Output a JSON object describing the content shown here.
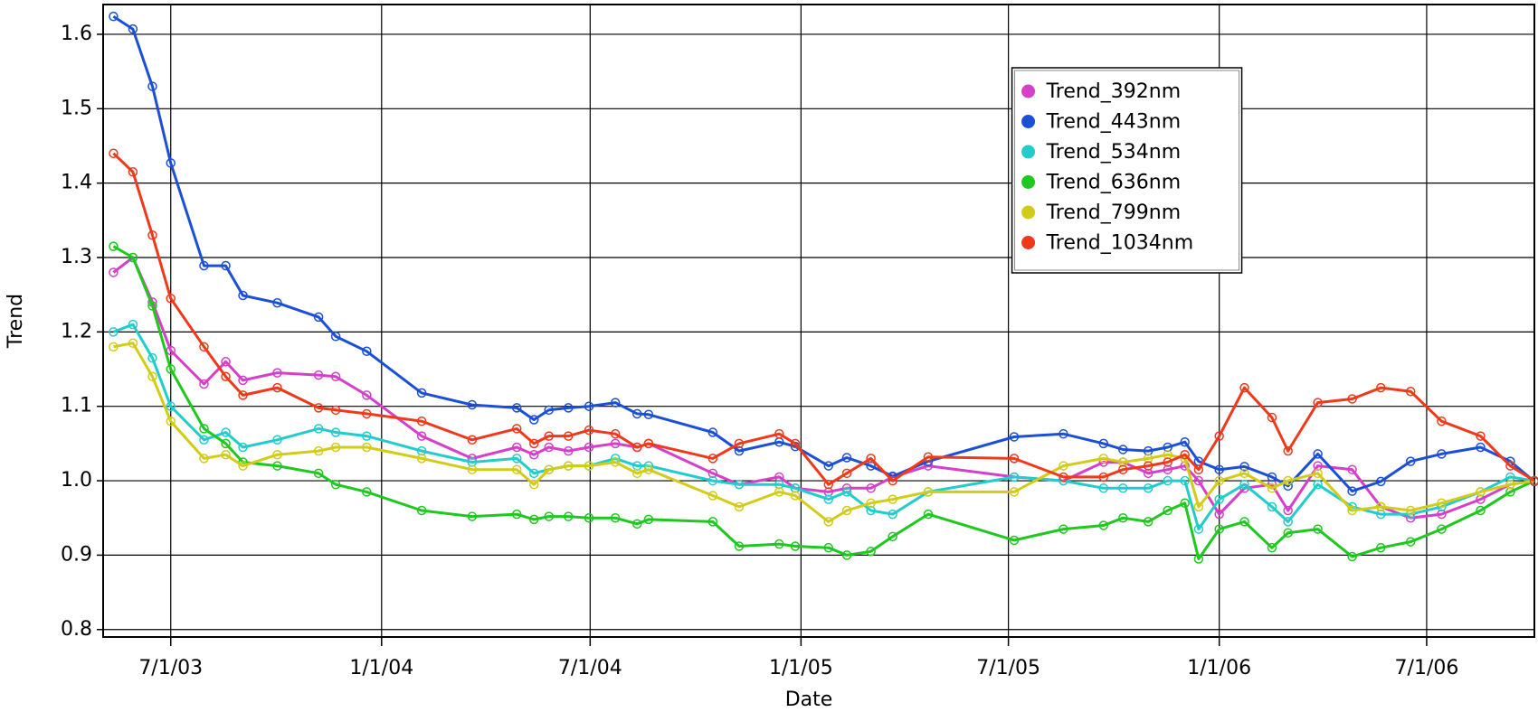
{
  "chart_data": {
    "type": "line",
    "x_label": "Date",
    "y_label": "Trend",
    "x": [
      "2003-05-12",
      "2003-05-29",
      "2003-06-15",
      "2003-07-01",
      "2003-07-30",
      "2003-08-18",
      "2003-09-02",
      "2003-10-02",
      "2003-11-07",
      "2003-11-22",
      "2003-12-19",
      "2004-02-05",
      "2004-03-20",
      "2004-04-28",
      "2004-05-13",
      "2004-05-26",
      "2004-06-12",
      "2004-06-30",
      "2004-07-23",
      "2004-08-11",
      "2004-08-21",
      "2004-10-16",
      "2004-11-08",
      "2004-12-13",
      "2004-12-27",
      "2005-01-25",
      "2005-02-10",
      "2005-03-03",
      "2005-03-22",
      "2005-04-22",
      "2005-07-06",
      "2005-08-18",
      "2005-09-22",
      "2005-10-09",
      "2005-10-31",
      "2005-11-17",
      "2005-12-02",
      "2005-12-14",
      "2006-01-01",
      "2006-01-23",
      "2006-02-16",
      "2006-03-02",
      "2006-03-28",
      "2006-04-27",
      "2006-05-22",
      "2006-06-17",
      "2006-07-14",
      "2006-08-17",
      "2006-09-12",
      "2006-10-03"
    ],
    "series": [
      {
        "name": "Trend_392nm",
        "color": "#d63fc8",
        "values": [
          1.28,
          1.3,
          1.24,
          1.175,
          1.13,
          1.16,
          1.135,
          1.145,
          1.142,
          1.14,
          1.115,
          1.06,
          1.03,
          1.045,
          1.035,
          1.045,
          1.04,
          1.045,
          1.05,
          1.045,
          1.05,
          1.01,
          0.995,
          1.005,
          0.99,
          0.985,
          0.99,
          0.99,
          1.005,
          1.02,
          1.005,
          1.0,
          1.025,
          1.025,
          1.01,
          1.015,
          1.02,
          1.0,
          0.955,
          0.99,
          0.995,
          0.96,
          1.02,
          1.015,
          0.965,
          0.95,
          0.955,
          0.975,
          0.995,
          1.0
        ]
      },
      {
        "name": "Trend_443nm",
        "color": "#1a4fd6",
        "values": [
          1.624,
          1.607,
          1.53,
          1.427,
          1.289,
          1.289,
          1.249,
          1.239,
          1.22,
          1.194,
          1.174,
          1.118,
          1.102,
          1.098,
          1.082,
          1.095,
          1.098,
          1.1,
          1.105,
          1.09,
          1.089,
          1.065,
          1.04,
          1.052,
          1.046,
          1.02,
          1.031,
          1.02,
          1.006,
          1.026,
          1.059,
          1.063,
          1.05,
          1.042,
          1.04,
          1.045,
          1.052,
          1.026,
          1.015,
          1.019,
          1.005,
          0.993,
          1.036,
          0.986,
          0.999,
          1.026,
          1.036,
          1.045,
          1.026,
          0.999
        ]
      },
      {
        "name": "Trend_534nm",
        "color": "#22cccc",
        "values": [
          1.2,
          1.21,
          1.165,
          1.1,
          1.055,
          1.065,
          1.045,
          1.055,
          1.07,
          1.065,
          1.06,
          1.04,
          1.025,
          1.03,
          1.01,
          1.015,
          1.02,
          1.02,
          1.03,
          1.02,
          1.02,
          1.0,
          0.995,
          0.995,
          0.99,
          0.975,
          0.985,
          0.96,
          0.955,
          0.985,
          1.005,
          1.0,
          0.99,
          0.99,
          0.99,
          1.0,
          1.0,
          0.935,
          0.975,
          0.995,
          0.965,
          0.945,
          0.995,
          0.965,
          0.955,
          0.955,
          0.965,
          0.985,
          1.005,
          1.0
        ]
      },
      {
        "name": "Trend_636nm",
        "color": "#1ec81e",
        "values": [
          1.315,
          1.3,
          1.235,
          1.15,
          1.07,
          1.05,
          1.025,
          1.02,
          1.01,
          0.995,
          0.985,
          0.96,
          0.952,
          0.955,
          0.948,
          0.952,
          0.952,
          0.95,
          0.95,
          0.942,
          0.948,
          0.945,
          0.912,
          0.915,
          0.912,
          0.91,
          0.9,
          0.905,
          0.925,
          0.955,
          0.92,
          0.935,
          0.94,
          0.95,
          0.945,
          0.96,
          0.97,
          0.895,
          0.935,
          0.945,
          0.91,
          0.93,
          0.935,
          0.898,
          0.91,
          0.918,
          0.935,
          0.96,
          0.985,
          1.0
        ]
      },
      {
        "name": "Trend_799nm",
        "color": "#d2cc18",
        "values": [
          1.18,
          1.185,
          1.14,
          1.08,
          1.03,
          1.035,
          1.02,
          1.035,
          1.04,
          1.045,
          1.045,
          1.03,
          1.015,
          1.015,
          0.995,
          1.015,
          1.02,
          1.02,
          1.025,
          1.01,
          1.015,
          0.98,
          0.965,
          0.985,
          0.98,
          0.945,
          0.96,
          0.97,
          0.975,
          0.985,
          0.985,
          1.02,
          1.03,
          1.025,
          1.03,
          1.035,
          1.03,
          0.965,
          1.0,
          1.01,
          0.99,
          1.0,
          1.01,
          0.96,
          0.965,
          0.96,
          0.97,
          0.985,
          0.995,
          1.0
        ]
      },
      {
        "name": "Trend_1034nm",
        "color": "#f0381a",
        "values": [
          1.44,
          1.415,
          1.33,
          1.245,
          1.18,
          1.14,
          1.115,
          1.125,
          1.098,
          1.095,
          1.09,
          1.08,
          1.055,
          1.07,
          1.05,
          1.06,
          1.06,
          1.068,
          1.063,
          1.045,
          1.05,
          1.03,
          1.05,
          1.063,
          1.05,
          0.995,
          1.01,
          1.03,
          1.0,
          1.032,
          1.03,
          1.005,
          1.005,
          1.015,
          1.02,
          1.025,
          1.035,
          1.015,
          1.06,
          1.125,
          1.085,
          1.04,
          1.105,
          1.11,
          1.125,
          1.12,
          1.08,
          1.06,
          1.02,
          1.0
        ]
      }
    ],
    "xlim": [
      "2003-05-03",
      "2006-10-03"
    ],
    "xticks": [
      {
        "value": "2003-07-01",
        "label": "7/1/03"
      },
      {
        "value": "2004-01-01",
        "label": "1/1/04"
      },
      {
        "value": "2004-07-01",
        "label": "7/1/04"
      },
      {
        "value": "2005-01-01",
        "label": "1/1/05"
      },
      {
        "value": "2005-07-01",
        "label": "7/1/05"
      },
      {
        "value": "2006-01-01",
        "label": "1/1/06"
      },
      {
        "value": "2006-07-01",
        "label": "7/1/06"
      }
    ],
    "ylim": [
      0.79,
      1.64
    ],
    "yticks": [
      0.8,
      0.9,
      {
        "value": 1,
        "label": "1.0"
      },
      1.1,
      1.2,
      1.3,
      1.4,
      1.5,
      1.6
    ],
    "grid": true,
    "legend": "upper right"
  }
}
